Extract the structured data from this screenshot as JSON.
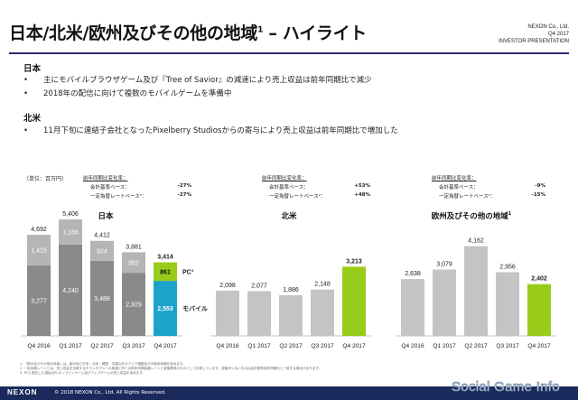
{
  "header": {
    "title": "日本/北米/欧州及びその他の地域",
    "title_sup": "1",
    "title_suffix": " – ハイライト",
    "corp_line1": "NEXON Co., Ltd.",
    "corp_line2": "Q4 2017",
    "corp_line3": "INVESTOR PRESENTATION"
  },
  "highlights": {
    "japan": {
      "heading": "日本",
      "bullets": [
        "主にモバイルブラウザゲーム及び『Tree of Savior』の減速により売上収益は前年同期比で減少",
        "2018年の配信に向けて複数のモバイルゲームを準備中"
      ]
    },
    "na": {
      "heading": "北米",
      "bullets": [
        "11月下旬に連結子会社となったPixelberry Studiosからの寄与により売上収益は前年同期比で増加した"
      ]
    },
    "bullet_mark": "•"
  },
  "unit_label": "（単位：百万円）",
  "change_tables": [
    {
      "header": "前年同期比変化率：",
      "rows": [
        {
          "label": "会計基準ベース：",
          "value": "-27%"
        },
        {
          "label": "一定為替レートベース²：",
          "value": "-27%"
        }
      ]
    },
    {
      "header": "前年同期比変化率：",
      "rows": [
        {
          "label": "会計基準ベース：",
          "value": "+53%"
        },
        {
          "label": "一定為替レートベース²：",
          "value": "+48%"
        }
      ]
    },
    {
      "header": "前年同期比変化率：",
      "rows": [
        {
          "label": "会計基準ベース：",
          "value": "-9%"
        },
        {
          "label": "一定為替レートベース²：",
          "value": "-15%"
        }
      ]
    }
  ],
  "chart_titles": {
    "japan": "日本",
    "na": "北米",
    "eu": "欧州及びその他の地域",
    "eu_sup": "1"
  },
  "colors": {
    "mobile_past": "#8a8a8a",
    "pc_past": "#b5b5b5",
    "mobile_latest": "#1ba3c9",
    "pc_latest": "#99cc1a",
    "bar_past": "#c4c4c4",
    "bar_latest": "#99cc1a",
    "title_rule": "#2d2d6b"
  },
  "chart_data": [
    {
      "type": "bar",
      "stacked": true,
      "title": "日本",
      "categories": [
        "Q4 2016",
        "Q1 2017",
        "Q2 2017",
        "Q3 2017",
        "Q4 2017"
      ],
      "series": [
        {
          "name": "モバイル",
          "values": [
            3277,
            4240,
            3488,
            2929,
            2553
          ]
        },
        {
          "name": "PC³",
          "values": [
            1415,
            1166,
            924,
            952,
            861
          ]
        }
      ],
      "totals": [
        4692,
        5406,
        4412,
        3881,
        3414
      ],
      "ylim": [
        0,
        5600
      ]
    },
    {
      "type": "bar",
      "title": "北米",
      "categories": [
        "Q4 2016",
        "Q1 2017",
        "Q2 2017",
        "Q3 2017",
        "Q4 2017"
      ],
      "values": [
        2098,
        2077,
        1886,
        2148,
        3213
      ],
      "ylim": [
        0,
        5600
      ]
    },
    {
      "type": "bar",
      "title": "欧州及びその他の地域¹",
      "categories": [
        "Q4 2016",
        "Q1 2017",
        "Q2 2017",
        "Q3 2017",
        "Q4 2017"
      ],
      "values": [
        2638,
        3079,
        4162,
        2956,
        2402
      ],
      "ylim": [
        0,
        5600
      ]
    }
  ],
  "footnotes": [
    "1. 「欧州及びその他の地域」は、欧州及び日本・北米・韓国・中国以外のアジア諸国及び中南米地域を含みます。",
    "2. 一定為替レートとは、売上収益を比較するタウンタブルーの各値と同一の前年同期為替レートと実施基準のものとして計算しています。変動が少ないものは会計基準前年同期比と一致する場合があります。",
    "3. PCと表記した項目はPCオンラインゲーム及びウェブゲームの売上収益を含めます。"
  ],
  "footer": {
    "logo": "NEXON",
    "copyright": "© 2018 NEXON Co., Ltd. All Rights Reserved."
  },
  "watermark": "Social Game Info"
}
